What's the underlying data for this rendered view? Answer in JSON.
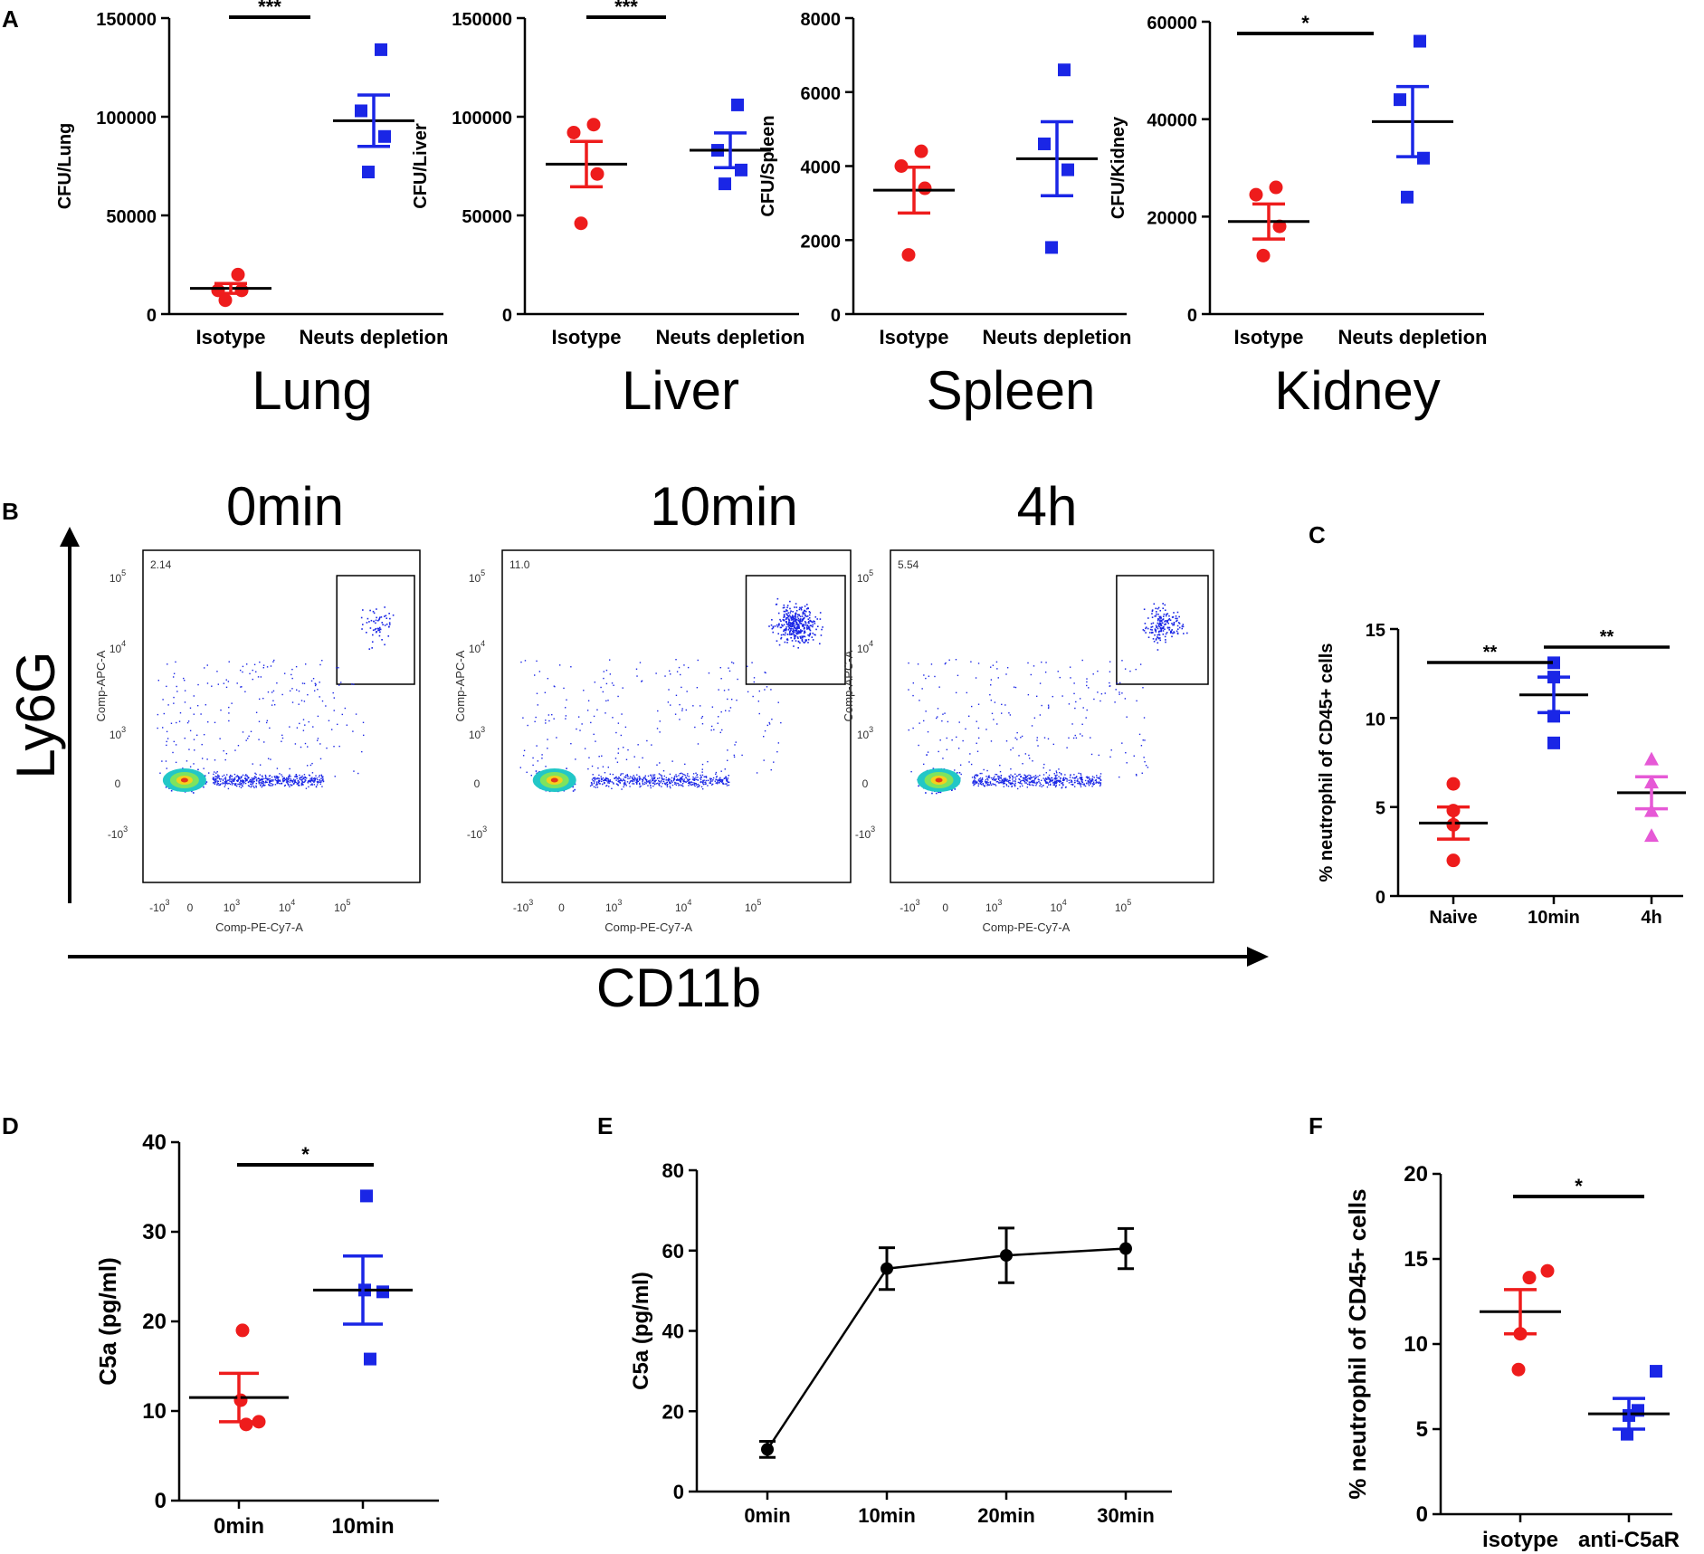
{
  "colors": {
    "red": "#ee1c1c",
    "blue": "#1a26e6",
    "pink": "#e659d6",
    "black": "#000000"
  },
  "panels": {
    "A": "A",
    "B": "B",
    "C": "C",
    "D": "D",
    "E": "E",
    "F": "F"
  },
  "panel_b": {
    "y_axis_label": "Ly6G",
    "x_axis_label": "CD11b",
    "plots": [
      {
        "title": "0min",
        "gate_value": "2.14",
        "x_label": "Comp-PE-Cy7-A",
        "y_label": "Comp-APC-A",
        "gate_density": 60
      },
      {
        "title": "10min",
        "gate_value": "11.0",
        "x_label": "Comp-PE-Cy7-A",
        "y_label": "Comp-APC-A",
        "gate_density": 380
      },
      {
        "title": "4h",
        "gate_value": "5.54",
        "x_label": "Comp-PE-Cy7-A",
        "y_label": "Comp-APC-A",
        "gate_density": 180
      }
    ],
    "x_ticks": [
      "-10",
      "0",
      "10",
      "10",
      "10"
    ],
    "x_tick_exps": [
      "3",
      "",
      "3",
      "4",
      "5"
    ],
    "y_ticks": [
      "10",
      "10",
      "10",
      "0",
      "-10"
    ],
    "y_tick_exps": [
      "5",
      "4",
      "3",
      "",
      "3"
    ]
  },
  "chart_data": [
    {
      "panel": "A",
      "type": "scatter",
      "organ": "Lung",
      "ylabel": "CFU/Lung",
      "categories": [
        "Isotype",
        "Neuts depletion"
      ],
      "ylim": [
        0,
        150000
      ],
      "yticks": [
        0,
        50000,
        100000,
        150000
      ],
      "ytick_labels": [
        "0",
        "50000",
        "100000",
        "150000"
      ],
      "significance": "***",
      "series": [
        {
          "name": "Isotype",
          "color": "red",
          "marker": "circle",
          "points": [
            20000,
            12000,
            12000,
            7000
          ],
          "mean": 13000,
          "sem": 2500
        },
        {
          "name": "Neuts depletion",
          "color": "blue",
          "marker": "square",
          "points": [
            134000,
            103000,
            90000,
            72000
          ],
          "mean": 98000,
          "sem": 13000
        }
      ]
    },
    {
      "panel": "A",
      "type": "scatter",
      "organ": "Liver",
      "ylabel": "CFU/Liver",
      "categories": [
        "Isotype",
        "Neuts depletion"
      ],
      "ylim": [
        0,
        150000
      ],
      "yticks": [
        0,
        50000,
        100000,
        150000
      ],
      "ytick_labels": [
        "0",
        "50000",
        "100000",
        "150000"
      ],
      "significance": "***",
      "series": [
        {
          "name": "Isotype",
          "color": "red",
          "marker": "circle",
          "points": [
            96000,
            92000,
            71000,
            46000
          ],
          "mean": 76000,
          "sem": 11500
        },
        {
          "name": "Neuts depletion",
          "color": "blue",
          "marker": "square",
          "points": [
            106000,
            83000,
            73000,
            66000
          ],
          "mean": 83000,
          "sem": 8800
        }
      ]
    },
    {
      "panel": "A",
      "type": "scatter",
      "organ": "Spleen",
      "ylabel": "CFU/Spleen",
      "categories": [
        "Isotype",
        "Neuts depletion"
      ],
      "ylim": [
        0,
        8000
      ],
      "yticks": [
        0,
        2000,
        4000,
        6000,
        8000
      ],
      "ytick_labels": [
        "0",
        "2000",
        "4000",
        "6000",
        "8000"
      ],
      "significance": "",
      "series": [
        {
          "name": "Isotype",
          "color": "red",
          "marker": "circle",
          "points": [
            4400,
            4000,
            3400,
            1600
          ],
          "mean": 3350,
          "sem": 620
        },
        {
          "name": "Neuts depletion",
          "color": "blue",
          "marker": "square",
          "points": [
            6600,
            4600,
            3900,
            1800
          ],
          "mean": 4200,
          "sem": 1000
        }
      ]
    },
    {
      "panel": "A",
      "type": "scatter",
      "organ": "Kidney",
      "ylabel": "CFU/Kidney",
      "categories": [
        "Isotype",
        "Neuts depletion"
      ],
      "ylim": [
        0,
        60000
      ],
      "yticks": [
        0,
        20000,
        40000,
        60000
      ],
      "ytick_labels": [
        "0",
        "20000",
        "40000",
        "60000"
      ],
      "significance": "*",
      "series": [
        {
          "name": "Isotype",
          "color": "red",
          "marker": "circle",
          "points": [
            26000,
            24500,
            18000,
            12000
          ],
          "mean": 19000,
          "sem": 3600
        },
        {
          "name": "Neuts depletion",
          "color": "blue",
          "marker": "square",
          "points": [
            56000,
            44000,
            32000,
            24000
          ],
          "mean": 39500,
          "sem": 7200
        }
      ]
    },
    {
      "panel": "C",
      "type": "scatter",
      "ylabel": "% neutrophil of CD45+ cells",
      "categories": [
        "Naive",
        "10min",
        "4h"
      ],
      "ylim": [
        0,
        15
      ],
      "yticks": [
        0,
        5,
        10,
        15
      ],
      "ytick_labels": [
        "0",
        "5",
        "10",
        "15"
      ],
      "significance_pairs": [
        {
          "from": 0,
          "to": 1,
          "label": "**"
        },
        {
          "from": 1,
          "to": 2,
          "label": "**"
        }
      ],
      "series": [
        {
          "name": "Naive",
          "color": "red",
          "marker": "circle",
          "points": [
            6.3,
            4.8,
            4.0,
            2.0
          ],
          "mean": 4.1,
          "sem": 0.9
        },
        {
          "name": "10min",
          "color": "blue",
          "marker": "square",
          "points": [
            13.1,
            12.3,
            10.1,
            8.6
          ],
          "mean": 11.3,
          "sem": 1.0
        },
        {
          "name": "4h",
          "color": "pink",
          "marker": "triangle",
          "points": [
            7.7,
            6.4,
            4.8,
            3.4
          ],
          "mean": 5.8,
          "sem": 0.9
        }
      ]
    },
    {
      "panel": "D",
      "type": "scatter",
      "ylabel": "C5a (pg/ml)",
      "categories": [
        "0min",
        "10min"
      ],
      "ylim": [
        0,
        40
      ],
      "yticks": [
        0,
        10,
        20,
        30,
        40
      ],
      "ytick_labels": [
        "0",
        "10",
        "20",
        "30",
        "40"
      ],
      "significance": "*",
      "series": [
        {
          "name": "0min",
          "color": "red",
          "marker": "circle",
          "points": [
            19.0,
            11.2,
            8.8,
            8.5
          ],
          "mean": 11.5,
          "sem": 2.7
        },
        {
          "name": "10min",
          "color": "blue",
          "marker": "square",
          "points": [
            34.0,
            23.5,
            23.3,
            15.8
          ],
          "mean": 23.5,
          "sem": 3.8
        }
      ]
    },
    {
      "panel": "E",
      "type": "line",
      "ylabel": "C5a (pg/ml)",
      "categories": [
        "0min",
        "10min",
        "20min",
        "30min"
      ],
      "ylim": [
        0,
        80
      ],
      "yticks": [
        0,
        20,
        40,
        60,
        80
      ],
      "ytick_labels": [
        "0",
        "20",
        "40",
        "60",
        "80"
      ],
      "values": [
        10.5,
        55.5,
        58.8,
        60.5
      ],
      "errors": [
        2.0,
        5.2,
        6.8,
        5.0
      ]
    },
    {
      "panel": "F",
      "type": "scatter",
      "ylabel": "% neutrophil of CD45+ cells",
      "categories": [
        "isotype",
        "anti-C5aR"
      ],
      "ylim": [
        0,
        20
      ],
      "yticks": [
        0,
        5,
        10,
        15,
        20
      ],
      "ytick_labels": [
        "0",
        "5",
        "10",
        "15",
        "20"
      ],
      "significance": "*",
      "series": [
        {
          "name": "isotype",
          "color": "red",
          "marker": "circle",
          "points": [
            14.3,
            13.9,
            10.6,
            8.5
          ],
          "mean": 11.9,
          "sem": 1.3
        },
        {
          "name": "anti-C5aR",
          "color": "blue",
          "marker": "square",
          "points": [
            8.4,
            6.1,
            5.8,
            4.7
          ],
          "mean": 5.9,
          "sem": 0.9
        }
      ]
    }
  ]
}
